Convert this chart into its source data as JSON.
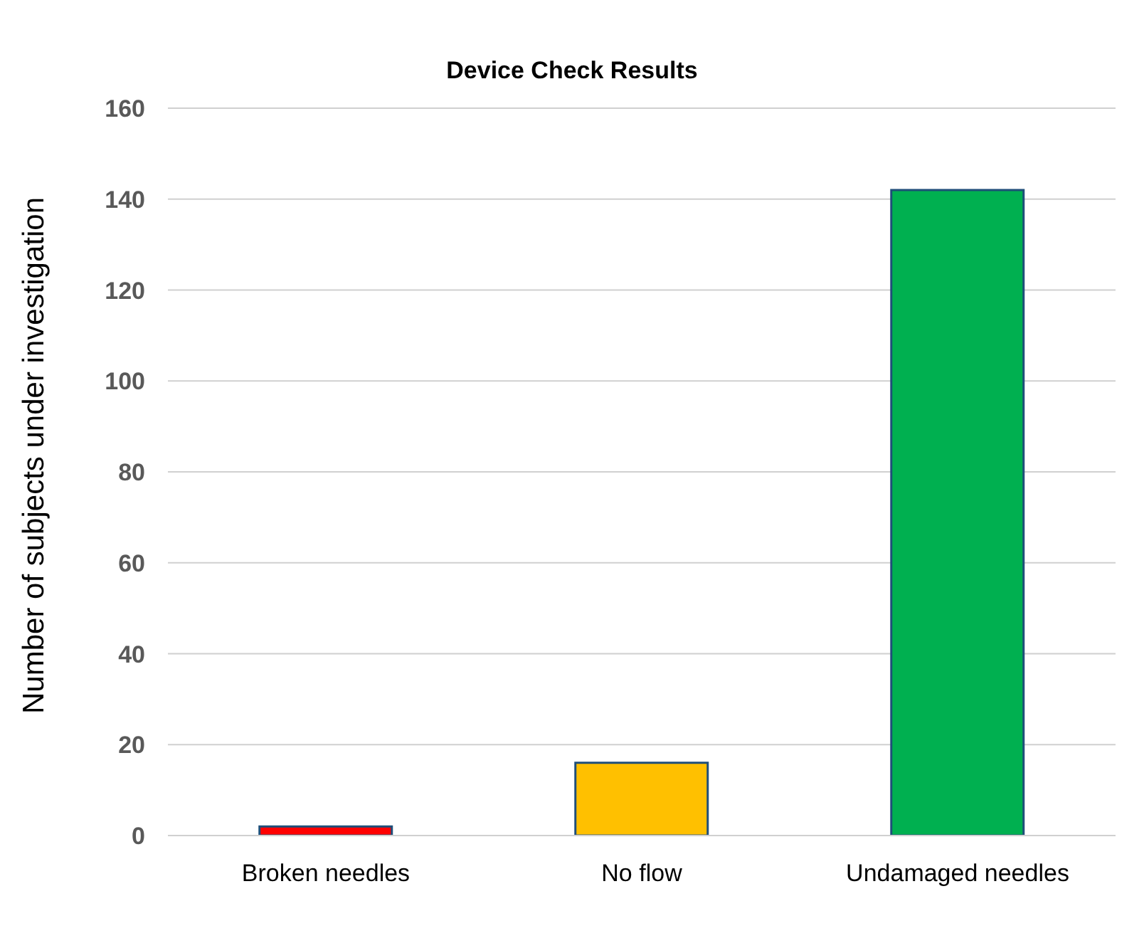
{
  "chart_data": {
    "type": "bar",
    "title": "Device Check Results",
    "ylabel": "Number of subjects under investigation",
    "categories": [
      "Broken needles",
      "No flow",
      "Undamaged needles"
    ],
    "values": [
      2,
      16,
      142
    ],
    "colors": [
      "#ff0000",
      "#ffc000",
      "#00b050"
    ],
    "ylim": [
      0,
      160
    ],
    "yticks": [
      0,
      20,
      40,
      60,
      80,
      100,
      120,
      140,
      160
    ],
    "grid": "y"
  }
}
